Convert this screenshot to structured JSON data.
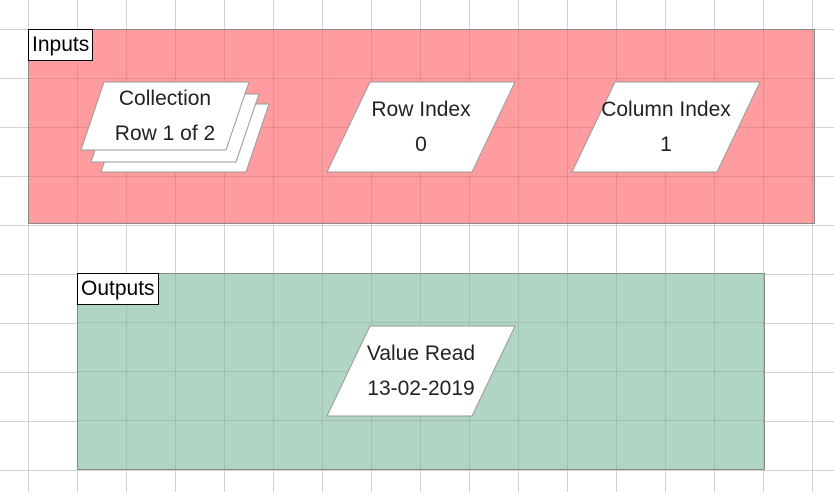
{
  "inputs": {
    "label": "Inputs",
    "color": "#ff9c9f",
    "items": [
      {
        "title": "Collection",
        "value": "Row 1 of 2",
        "icon": "stacked-parallelogram"
      },
      {
        "title": "Row Index",
        "value": "0",
        "icon": "parallelogram"
      },
      {
        "title": "Column Index",
        "value": "1",
        "icon": "parallelogram"
      }
    ]
  },
  "outputs": {
    "label": "Outputs",
    "color": "#b0d5c3",
    "items": [
      {
        "title": "Value Read",
        "value": "13-02-2019",
        "icon": "parallelogram"
      }
    ]
  }
}
